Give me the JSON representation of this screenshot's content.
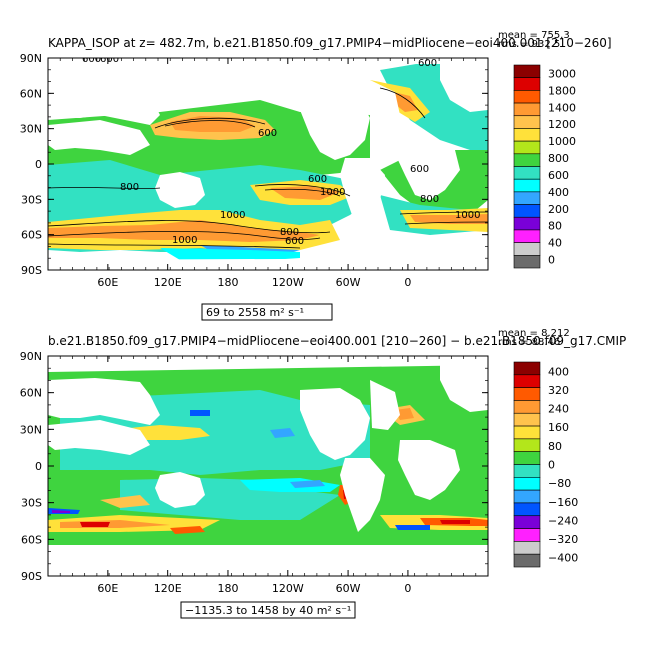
{
  "chart_data": [
    {
      "type": "heatmap",
      "title": "KAPPA_ISOP at z= 482.7m, b.e21.B1850.f09_g17.PMIP4−midPliocene−eoi400.001 [210−260]",
      "stats": {
        "mean": "mean = 755.3",
        "rms": "rms = 932.5"
      },
      "range_label": "69 to 2558 m² s⁻¹",
      "x_ticks": [
        "60E",
        "120E",
        "180",
        "120W",
        "60W",
        "0"
      ],
      "y_ticks": [
        "90N",
        "60N",
        "30N",
        "0",
        "30S",
        "60S",
        "90S"
      ],
      "colorbar": {
        "levels": [
          "3000",
          "1800",
          "1400",
          "1200",
          "1000",
          "800",
          "600",
          "400",
          "200",
          "80",
          "40",
          "0"
        ],
        "colors": [
          "#8b0000",
          "#dd0000",
          "#ff5a00",
          "#ff9a33",
          "#ffc34d",
          "#ffe13a",
          "#b3e61b",
          "#3fd43f",
          "#32e1c2",
          "#00ffff",
          "#33a6ff",
          "#0055ff",
          "#7a00d8",
          "#ff20ff",
          "#cccccc",
          "#6b6b6b"
        ]
      },
      "contour_labels": [
        "600",
        "600",
        "600",
        "600",
        "800",
        "800",
        "800",
        "1000",
        "1000",
        "1000",
        "600",
        "600",
        "600",
        "600",
        "800",
        "800"
      ]
    },
    {
      "type": "heatmap",
      "title": "b.e21.B1850.f09_g17.PMIP4−midPliocene−eoi400.001 [210−260] − b.e21.B1850.f09_g17.CMIP",
      "stats": {
        "mean": "mean = 8.212",
        "rms": "rms = 88.46"
      },
      "range_label": "−1135.3 to 1458 by 40 m² s⁻¹",
      "x_ticks": [
        "60E",
        "120E",
        "180",
        "120W",
        "60W",
        "0"
      ],
      "y_ticks": [
        "90N",
        "60N",
        "30N",
        "0",
        "30S",
        "60S",
        "90S"
      ],
      "colorbar": {
        "levels": [
          "400",
          "320",
          "240",
          "160",
          "80",
          "0",
          "−80",
          "−160",
          "−240",
          "−320",
          "−400"
        ],
        "colors": [
          "#8b0000",
          "#dd0000",
          "#ff5a00",
          "#ff9a33",
          "#ffc34d",
          "#ffe13a",
          "#b3e61b",
          "#3fd43f",
          "#32e1c2",
          "#00ffff",
          "#33a6ff",
          "#0055ff",
          "#7a00d8",
          "#ff20ff",
          "#cccccc",
          "#6b6b6b"
        ]
      }
    }
  ]
}
